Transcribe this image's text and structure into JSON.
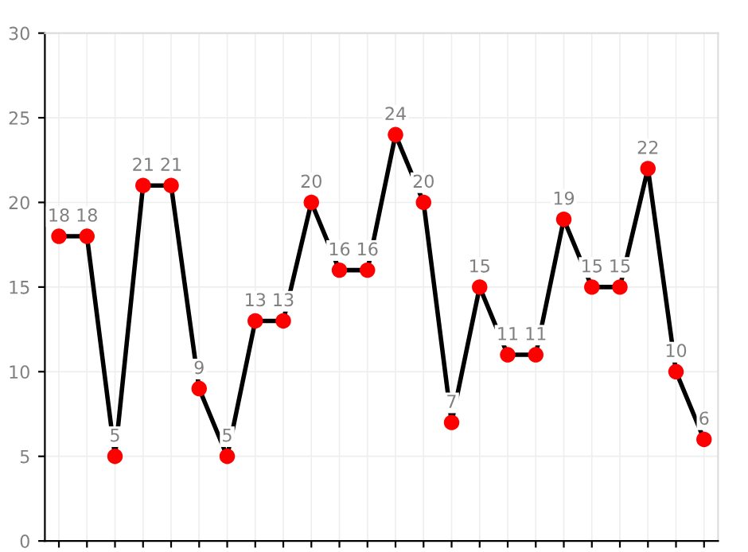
{
  "chart_data": {
    "type": "line",
    "categories": [
      null,
      null,
      null,
      null,
      null,
      null,
      null,
      null,
      null,
      null,
      null,
      null,
      null,
      null,
      null,
      null,
      null,
      null,
      null,
      null,
      null,
      null,
      null,
      null
    ],
    "series": [
      {
        "color": "#000000",
        "colors": [
          "#ff0000",
          "#ff0000",
          "#ff0000",
          "#ff0000",
          "#ff0000",
          "#ff0000",
          "#ff0000",
          "#ff0000",
          "#ff0000",
          "#ff0000",
          "#ff0000",
          "#ff0000",
          "#ff0000",
          "#ff0000",
          "#ff0000",
          "#ff0000",
          "#ff0000",
          "#ff0000",
          "#ff0000",
          "#ff0000",
          "#ff0000",
          "#ff0000",
          "#ff0000",
          "#ff0000"
        ],
        "values": [
          18,
          18,
          5,
          21,
          21,
          9,
          5,
          13,
          13,
          20,
          16,
          16,
          24,
          20,
          7,
          15,
          11,
          11,
          19,
          15,
          15,
          22,
          10,
          6
        ]
      }
    ],
    "ylim": [
      0,
      30
    ],
    "yticks": [
      0,
      5,
      10,
      15,
      20,
      25,
      30
    ],
    "grid": true,
    "marker": "circle",
    "line_style": "solid",
    "data_labels": true,
    "tick_labels": "y"
  }
}
